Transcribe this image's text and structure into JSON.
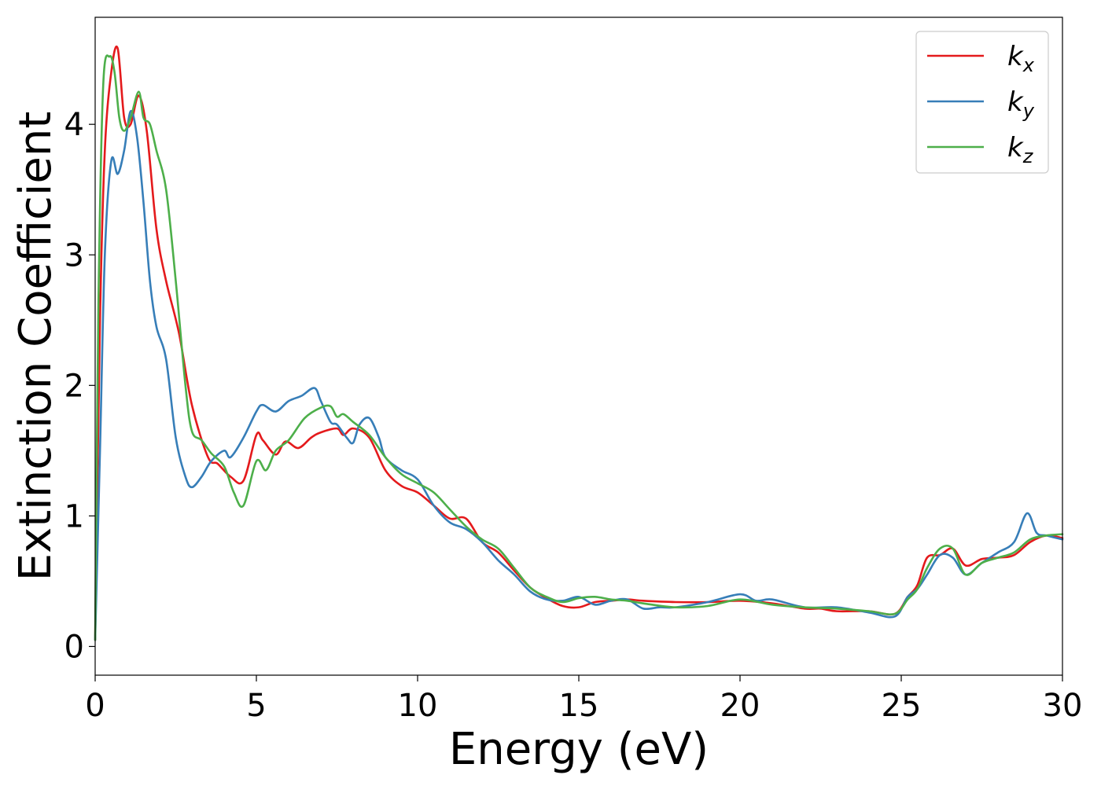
{
  "chart_data": {
    "type": "line",
    "xlabel": "Energy (eV)",
    "ylabel": "Extinction Coefficient",
    "xlim": [
      0,
      30
    ],
    "ylim": [
      -0.22,
      4.82
    ],
    "xticks": [
      0,
      5,
      10,
      15,
      20,
      25,
      30
    ],
    "xtick_labels": [
      "0",
      "5",
      "10",
      "15",
      "20",
      "25",
      "30"
    ],
    "yticks": [
      0,
      1,
      2,
      3,
      4
    ],
    "ytick_labels": [
      "0",
      "1",
      "2",
      "3",
      "4"
    ],
    "grid": false,
    "legend_position": "top-right",
    "series": [
      {
        "name": "k_x",
        "label_main": "k",
        "label_sub": "x",
        "color": "#e41a1c",
        "x": [
          0,
          0.15,
          0.3,
          0.5,
          0.7,
          0.9,
          1.1,
          1.35,
          1.6,
          1.9,
          2.2,
          2.6,
          3.0,
          3.5,
          3.8,
          4.2,
          4.6,
          5.0,
          5.2,
          5.6,
          5.9,
          6.3,
          6.7,
          7.0,
          7.5,
          7.7,
          8.0,
          8.5,
          9.0,
          9.5,
          10.0,
          10.5,
          11.0,
          11.5,
          12.0,
          12.5,
          13.0,
          13.5,
          14.0,
          14.5,
          15.0,
          15.5,
          16.0,
          16.5,
          17.0,
          18.0,
          19.0,
          20.0,
          21.0,
          22.0,
          22.5,
          23.0,
          24.0,
          24.8,
          25.2,
          25.5,
          25.8,
          26.2,
          26.6,
          27.0,
          27.5,
          28.0,
          28.5,
          29.0,
          29.5,
          30.0
        ],
        "y": [
          0.05,
          2.5,
          3.8,
          4.4,
          4.58,
          4.05,
          4.0,
          4.22,
          3.95,
          3.2,
          2.8,
          2.4,
          1.85,
          1.45,
          1.4,
          1.3,
          1.27,
          1.62,
          1.58,
          1.47,
          1.57,
          1.52,
          1.6,
          1.64,
          1.67,
          1.62,
          1.67,
          1.6,
          1.35,
          1.23,
          1.18,
          1.08,
          0.98,
          0.98,
          0.8,
          0.72,
          0.58,
          0.45,
          0.37,
          0.31,
          0.3,
          0.34,
          0.35,
          0.36,
          0.35,
          0.34,
          0.34,
          0.35,
          0.33,
          0.29,
          0.29,
          0.27,
          0.27,
          0.25,
          0.38,
          0.47,
          0.68,
          0.7,
          0.75,
          0.62,
          0.67,
          0.68,
          0.7,
          0.8,
          0.85,
          0.83
        ]
      },
      {
        "name": "k_y",
        "label_main": "k",
        "label_sub": "y",
        "color": "#377eb8",
        "x": [
          0,
          0.15,
          0.3,
          0.5,
          0.7,
          0.9,
          1.1,
          1.3,
          1.5,
          1.7,
          1.9,
          2.2,
          2.5,
          2.8,
          3.0,
          3.3,
          3.6,
          4.0,
          4.2,
          4.6,
          5.0,
          5.2,
          5.6,
          6.0,
          6.4,
          6.8,
          7.0,
          7.3,
          7.5,
          7.8,
          8.0,
          8.2,
          8.5,
          8.8,
          9.0,
          9.5,
          10.0,
          10.5,
          11.0,
          11.5,
          12.0,
          12.5,
          13.0,
          13.5,
          14.0,
          14.5,
          15.0,
          15.5,
          16.0,
          16.5,
          17.0,
          17.5,
          18.0,
          19.0,
          20.0,
          20.5,
          21.0,
          22.0,
          23.0,
          24.0,
          24.8,
          25.2,
          25.5,
          25.8,
          26.2,
          26.6,
          27.0,
          27.5,
          28.0,
          28.5,
          28.9,
          29.2,
          29.5,
          30.0
        ],
        "y": [
          0.05,
          1.5,
          3.0,
          3.72,
          3.62,
          3.8,
          4.1,
          3.9,
          3.4,
          2.8,
          2.45,
          2.2,
          1.6,
          1.3,
          1.22,
          1.3,
          1.42,
          1.5,
          1.45,
          1.6,
          1.8,
          1.85,
          1.8,
          1.88,
          1.92,
          1.98,
          1.88,
          1.72,
          1.7,
          1.6,
          1.56,
          1.7,
          1.75,
          1.6,
          1.45,
          1.35,
          1.28,
          1.08,
          0.95,
          0.9,
          0.8,
          0.66,
          0.55,
          0.42,
          0.36,
          0.35,
          0.38,
          0.32,
          0.35,
          0.36,
          0.29,
          0.3,
          0.3,
          0.34,
          0.4,
          0.35,
          0.36,
          0.3,
          0.3,
          0.26,
          0.23,
          0.38,
          0.44,
          0.55,
          0.7,
          0.68,
          0.55,
          0.64,
          0.72,
          0.8,
          1.02,
          0.87,
          0.85,
          0.82
        ]
      },
      {
        "name": "k_z",
        "label_main": "k",
        "label_sub": "z",
        "color": "#4daf4a",
        "x": [
          0,
          0.1,
          0.25,
          0.45,
          0.6,
          0.75,
          0.9,
          1.1,
          1.35,
          1.5,
          1.7,
          1.9,
          2.2,
          2.5,
          2.8,
          3.0,
          3.3,
          3.6,
          4.0,
          4.3,
          4.6,
          5.0,
          5.3,
          5.6,
          6.0,
          6.5,
          7.0,
          7.3,
          7.5,
          7.7,
          8.0,
          8.5,
          9.0,
          9.5,
          10.0,
          10.5,
          11.0,
          11.5,
          12.0,
          12.5,
          13.0,
          13.5,
          14.0,
          14.5,
          15.0,
          15.5,
          16.0,
          16.5,
          17.0,
          18.0,
          19.0,
          20.0,
          21.0,
          22.0,
          23.0,
          24.0,
          24.8,
          25.2,
          25.5,
          25.8,
          26.2,
          26.6,
          27.0,
          27.5,
          28.0,
          28.5,
          29.0,
          29.5,
          30.0
        ],
        "y": [
          0.05,
          2.6,
          4.3,
          4.52,
          4.4,
          4.05,
          3.95,
          4.05,
          4.25,
          4.05,
          4.0,
          3.8,
          3.5,
          2.8,
          2.0,
          1.65,
          1.58,
          1.48,
          1.38,
          1.18,
          1.08,
          1.42,
          1.35,
          1.5,
          1.58,
          1.75,
          1.83,
          1.84,
          1.76,
          1.78,
          1.72,
          1.62,
          1.45,
          1.32,
          1.25,
          1.18,
          1.05,
          0.92,
          0.82,
          0.75,
          0.6,
          0.45,
          0.38,
          0.34,
          0.37,
          0.38,
          0.36,
          0.35,
          0.33,
          0.3,
          0.31,
          0.36,
          0.32,
          0.3,
          0.29,
          0.27,
          0.25,
          0.36,
          0.44,
          0.6,
          0.75,
          0.75,
          0.55,
          0.64,
          0.68,
          0.72,
          0.82,
          0.85,
          0.86
        ]
      }
    ]
  }
}
